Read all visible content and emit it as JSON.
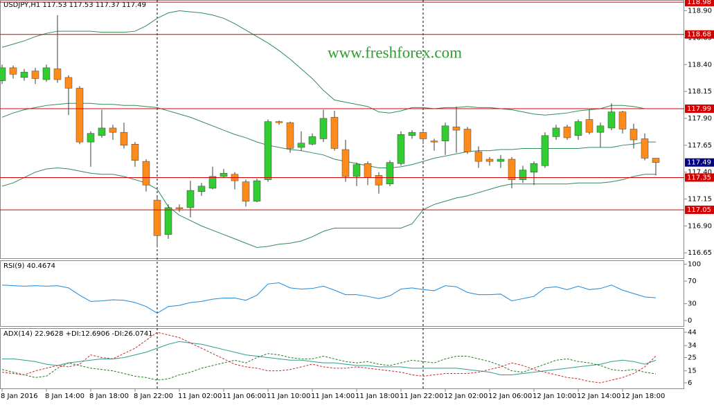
{
  "chart_data": [
    {
      "type": "candlestick",
      "title": "USDJPY,H1  117.53 117.53 117.37 117.49",
      "watermark": "www.freshforex.com",
      "up_color": "#32cd32",
      "down_color": "#ff8c1a",
      "wick_color": "#3a3a3a",
      "open": [
        118.25,
        118.37,
        118.28,
        118.34,
        118.26,
        118.36,
        118.28,
        118.18,
        117.68,
        117.74,
        117.81,
        117.77,
        117.66,
        117.5,
        117.14,
        116.82,
        117.07,
        117.07,
        117.22,
        117.25,
        117.36,
        117.38,
        117.31,
        117.13,
        117.33,
        117.87,
        117.86,
        117.63,
        117.66,
        117.71,
        117.91,
        117.61,
        117.36,
        117.48,
        117.37,
        117.29,
        117.48,
        117.74,
        117.77,
        117.69,
        117.69,
        117.82,
        117.8,
        117.59,
        117.52,
        117.5,
        117.52,
        117.33,
        117.4,
        117.46,
        117.73,
        117.82,
        117.74,
        117.89,
        117.77,
        117.81,
        117.96,
        117.8,
        117.71,
        117.53
      ],
      "high": [
        118.4,
        118.39,
        118.36,
        118.37,
        118.4,
        118.86,
        118.3,
        118.2,
        117.78,
        117.98,
        117.84,
        117.86,
        117.68,
        117.52,
        117.17,
        117.1,
        117.1,
        117.32,
        117.3,
        117.45,
        117.43,
        117.4,
        117.33,
        117.34,
        117.89,
        117.88,
        117.87,
        117.78,
        117.76,
        117.98,
        117.97,
        117.7,
        117.49,
        117.5,
        117.4,
        117.51,
        117.78,
        117.79,
        117.78,
        117.71,
        117.86,
        118.01,
        117.82,
        117.64,
        117.54,
        117.56,
        117.54,
        117.46,
        117.5,
        117.77,
        117.84,
        117.84,
        117.89,
        117.98,
        117.86,
        118.04,
        117.97,
        117.85,
        117.76,
        117.53
      ],
      "low": [
        118.22,
        118.27,
        118.25,
        118.22,
        118.24,
        118.23,
        117.93,
        117.66,
        117.45,
        117.72,
        117.7,
        117.62,
        117.45,
        117.22,
        116.7,
        116.78,
        117.03,
        116.98,
        117.18,
        117.24,
        117.35,
        117.24,
        117.08,
        117.12,
        117.31,
        117.84,
        117.58,
        117.6,
        117.65,
        117.68,
        117.6,
        117.31,
        117.27,
        117.28,
        117.2,
        117.27,
        117.46,
        117.71,
        117.66,
        117.6,
        117.56,
        117.58,
        117.57,
        117.44,
        117.46,
        117.44,
        117.25,
        117.3,
        117.28,
        117.44,
        117.7,
        117.7,
        117.7,
        117.75,
        117.63,
        117.79,
        117.76,
        117.62,
        117.51,
        117.37
      ],
      "close": [
        118.37,
        118.31,
        118.33,
        118.27,
        118.37,
        118.26,
        118.18,
        117.68,
        117.76,
        117.81,
        117.77,
        117.65,
        117.51,
        117.28,
        116.81,
        117.07,
        117.06,
        117.23,
        117.27,
        117.36,
        117.39,
        117.32,
        117.13,
        117.32,
        117.87,
        117.86,
        117.62,
        117.67,
        117.73,
        117.9,
        117.62,
        117.36,
        117.47,
        117.35,
        117.28,
        117.49,
        117.75,
        117.77,
        117.71,
        117.68,
        117.83,
        117.79,
        117.59,
        117.5,
        117.5,
        117.52,
        117.33,
        117.42,
        117.48,
        117.74,
        117.81,
        117.72,
        117.87,
        117.77,
        117.83,
        117.96,
        117.8,
        117.7,
        117.53,
        117.49
      ],
      "bands": {
        "color": "#2e8b57",
        "upper": [
          118.56,
          118.59,
          118.62,
          118.66,
          118.69,
          118.71,
          118.71,
          118.71,
          118.71,
          118.7,
          118.7,
          118.7,
          118.71,
          118.76,
          118.83,
          118.88,
          118.9,
          118.89,
          118.88,
          118.86,
          118.83,
          118.78,
          118.72,
          118.66,
          118.6,
          118.53,
          118.45,
          118.36,
          118.27,
          118.16,
          118.07,
          118.05,
          118.03,
          118.01,
          117.96,
          117.95,
          117.97,
          118.0,
          118.0,
          117.99,
          118.0,
          118.0,
          118.01,
          118.0,
          118.0,
          117.99,
          117.98,
          117.96,
          117.94,
          117.93,
          117.94,
          117.95,
          117.97,
          117.98,
          117.99,
          118.02,
          118.02,
          118.01,
          117.99,
          117.99
        ],
        "middle": [
          117.91,
          117.95,
          117.98,
          118.0,
          118.02,
          118.03,
          118.04,
          118.04,
          118.04,
          118.03,
          118.03,
          118.02,
          118.02,
          118.01,
          118.0,
          117.97,
          117.94,
          117.91,
          117.87,
          117.83,
          117.79,
          117.75,
          117.72,
          117.68,
          117.65,
          117.63,
          117.61,
          117.6,
          117.58,
          117.56,
          117.52,
          117.5,
          117.48,
          117.46,
          117.44,
          117.44,
          117.45,
          117.47,
          117.5,
          117.53,
          117.55,
          117.57,
          117.59,
          117.6,
          117.6,
          117.61,
          117.61,
          117.62,
          117.62,
          117.62,
          117.62,
          117.62,
          117.62,
          117.63,
          117.63,
          117.63,
          117.65,
          117.66,
          117.68,
          117.68
        ],
        "lower": [
          117.27,
          117.3,
          117.35,
          117.4,
          117.43,
          117.44,
          117.43,
          117.41,
          117.39,
          117.38,
          117.38,
          117.36,
          117.33,
          117.3,
          117.24,
          117.08,
          117.0,
          116.95,
          116.9,
          116.86,
          116.82,
          116.78,
          116.74,
          116.7,
          116.71,
          116.73,
          116.74,
          116.76,
          116.8,
          116.85,
          116.88,
          116.88,
          116.88,
          116.88,
          116.88,
          116.88,
          116.88,
          116.92,
          117.05,
          117.1,
          117.13,
          117.16,
          117.18,
          117.21,
          117.24,
          117.27,
          117.29,
          117.29,
          117.29,
          117.29,
          117.29,
          117.29,
          117.3,
          117.3,
          117.3,
          117.31,
          117.33,
          117.36,
          117.38,
          117.38
        ]
      },
      "levels": [
        118.98,
        118.68,
        117.99,
        117.35,
        117.05
      ],
      "level_color": "#d40000",
      "last_price": 117.49,
      "last_price_color": "#000080",
      "ylim": [
        116.6,
        119.0
      ],
      "yticks": [
        116.65,
        {
          "value": 116.9,
          "label": "116.90"
        },
        117.15,
        {
          "value": 117.4,
          "label": "117.40"
        },
        117.65,
        {
          "value": 117.9,
          "label": "117.90"
        },
        118.15,
        {
          "value": 118.4,
          "label": "118.40"
        },
        118.65,
        {
          "value": 118.9,
          "label": "118.90"
        }
      ]
    },
    {
      "type": "line",
      "title": "RSI(9) 40.4674",
      "series": [
        {
          "color": "#1e88d8",
          "values": [
            63,
            62,
            61,
            62,
            61,
            62,
            58,
            45,
            34,
            35,
            37,
            36,
            32,
            25,
            13,
            25,
            27,
            32,
            34,
            38,
            40,
            40,
            36,
            45,
            65,
            67,
            58,
            56,
            57,
            61,
            54,
            46,
            46,
            43,
            39,
            44,
            56,
            58,
            55,
            53,
            62,
            60,
            50,
            46,
            46,
            47,
            35,
            39,
            43,
            58,
            60,
            55,
            61,
            55,
            57,
            63,
            54,
            48,
            42,
            40.47
          ]
        }
      ],
      "ylim": [
        -11,
        107
      ],
      "yticks": [
        0,
        30,
        70,
        100
      ]
    },
    {
      "type": "line",
      "title": "ADX(14) 22.9628 +DI:12.6906 -DI:26.0741",
      "categories": [
        "8 Jan 2016",
        null,
        null,
        null,
        "8 Jan 14:00",
        null,
        null,
        null,
        "8 Jan 18:00",
        null,
        null,
        null,
        "8 Jan 22:00",
        null,
        null,
        null,
        "11 Jan 02:00",
        null,
        null,
        null,
        "11 Jan 06:00",
        null,
        null,
        null,
        "11 Jan 10:00",
        null,
        null,
        null,
        "11 Jan 14:00",
        null,
        null,
        null,
        "11 Jan 18:00",
        null,
        null,
        null,
        "11 Jan 22:00",
        null,
        null,
        null,
        "12 Jan 02:00",
        null,
        null,
        null,
        "12 Jan 06:00",
        null,
        null,
        null,
        "12 Jan 10:00",
        null,
        null,
        null,
        "12 Jan 14:00",
        null,
        null,
        null,
        "12 Jan 18:00",
        null,
        null,
        null
      ],
      "series": [
        {
          "color": "#2a9d8f",
          "dash": false,
          "values": [
            24,
            24,
            23,
            22,
            20,
            19,
            21,
            22,
            23,
            24,
            24,
            25,
            27,
            29,
            32,
            35,
            37,
            36,
            35,
            33,
            31,
            29,
            27,
            26,
            25,
            24,
            23,
            23,
            22,
            21,
            21,
            20,
            19,
            19,
            18,
            18,
            18,
            17,
            17,
            17,
            17,
            17,
            16,
            15,
            14,
            12,
            12,
            13,
            14,
            15,
            16,
            17,
            18,
            19,
            20,
            22,
            23,
            22,
            20,
            22.96
          ]
        },
        {
          "color": "#1f7a1f",
          "dash": true,
          "values": [
            16,
            14,
            12,
            10,
            11,
            17,
            21,
            19,
            17,
            16,
            15,
            13,
            11,
            10,
            8,
            9,
            12,
            14,
            17,
            19,
            21,
            23,
            21,
            25,
            28,
            27,
            25,
            24,
            24,
            26,
            24,
            22,
            21,
            22,
            20,
            19,
            21,
            23,
            22,
            21,
            24,
            26,
            26,
            24,
            22,
            19,
            15,
            14,
            17,
            20,
            23,
            24,
            22,
            21,
            19,
            16,
            15,
            16,
            14,
            12.69
          ]
        },
        {
          "color": "#c62828",
          "dash": true,
          "values": [
            14,
            13,
            12,
            15,
            17,
            19,
            18,
            20,
            27,
            25,
            24,
            28,
            32,
            38,
            44,
            42,
            40,
            36,
            32,
            28,
            24,
            20,
            18,
            17,
            15,
            15,
            16,
            18,
            20,
            18,
            17,
            17,
            18,
            17,
            16,
            15,
            14,
            12,
            11,
            12,
            13,
            13,
            13,
            14,
            16,
            18,
            21,
            19,
            16,
            14,
            12,
            10,
            9,
            7,
            6,
            8,
            10,
            13,
            18,
            26.07
          ]
        }
      ],
      "ylim": [
        1.3,
        47.1
      ],
      "yticks": [
        6,
        15,
        25,
        34,
        44
      ]
    }
  ]
}
